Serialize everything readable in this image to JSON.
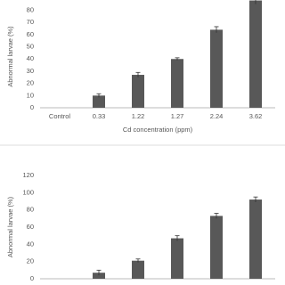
{
  "chart_data": [
    {
      "type": "bar",
      "categories": [
        "Control",
        "0.33",
        "1.22",
        "1.27",
        "2.24",
        "3.62"
      ],
      "values": [
        0,
        10,
        27,
        40,
        64,
        88
      ],
      "errors": [
        0,
        1.5,
        2,
        1,
        2.5,
        3
      ],
      "color": "#585858",
      "ylim": [
        0,
        84
      ],
      "yticks": [
        0,
        10,
        20,
        30,
        40,
        50,
        60,
        70,
        80
      ],
      "xlabel": "Cd concentration (ppm)",
      "ylabel": "Abnormal larvae (%)",
      "grid": false
    },
    {
      "type": "bar",
      "categories": [
        null,
        null,
        null,
        null,
        null,
        null
      ],
      "values": [
        0,
        7,
        21,
        47,
        73,
        92
      ],
      "errors": [
        0,
        3,
        2,
        3,
        3,
        3
      ],
      "color": "#585858",
      "ylim": [
        0,
        120
      ],
      "yticks": [
        0,
        20,
        40,
        60,
        80,
        100,
        120
      ],
      "ylabel": "Abnormal larvae (%)",
      "grid": false
    }
  ]
}
